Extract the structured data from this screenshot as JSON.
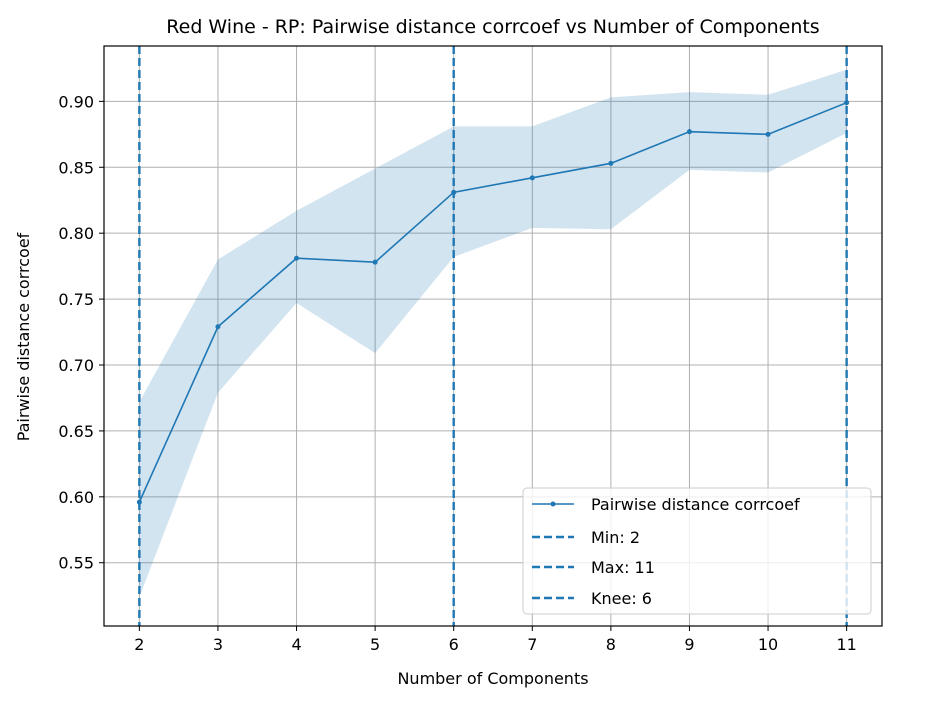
{
  "chart_data": {
    "type": "line",
    "title": "Red Wine - RP: Pairwise distance corrcoef vs Number of Components",
    "xlabel": "Number of Components",
    "ylabel": "Pairwise distance corrcoef",
    "xlim": [
      1.55,
      11.45
    ],
    "ylim": [
      0.502,
      0.942
    ],
    "x_ticks": [
      2,
      3,
      4,
      5,
      6,
      7,
      8,
      9,
      10,
      11
    ],
    "y_ticks": [
      0.55,
      0.6,
      0.65,
      0.7,
      0.75,
      0.8,
      0.85,
      0.9
    ],
    "y_tick_labels": [
      "0.55",
      "0.60",
      "0.65",
      "0.70",
      "0.75",
      "0.80",
      "0.85",
      "0.90"
    ],
    "grid": true,
    "legend_position": "bottom-right",
    "colors": {
      "line": "#1f77b4",
      "band": "#1f77b4",
      "grid": "#b0b0b0"
    },
    "series": [
      {
        "name": "Pairwise distance corrcoef",
        "x": [
          2,
          3,
          4,
          5,
          6,
          7,
          8,
          9,
          10,
          11
        ],
        "y": [
          0.596,
          0.729,
          0.781,
          0.778,
          0.831,
          0.842,
          0.853,
          0.877,
          0.875,
          0.899
        ],
        "band_upper": [
          0.672,
          0.78,
          0.817,
          0.849,
          0.881,
          0.881,
          0.903,
          0.907,
          0.905,
          0.924
        ],
        "band_lower": [
          0.524,
          0.679,
          0.747,
          0.709,
          0.782,
          0.804,
          0.803,
          0.848,
          0.846,
          0.876
        ]
      }
    ],
    "vlines": [
      {
        "name": "Min: 2",
        "x": 2
      },
      {
        "name": "Max: 11",
        "x": 11
      },
      {
        "name": "Knee: 6",
        "x": 6
      }
    ]
  }
}
